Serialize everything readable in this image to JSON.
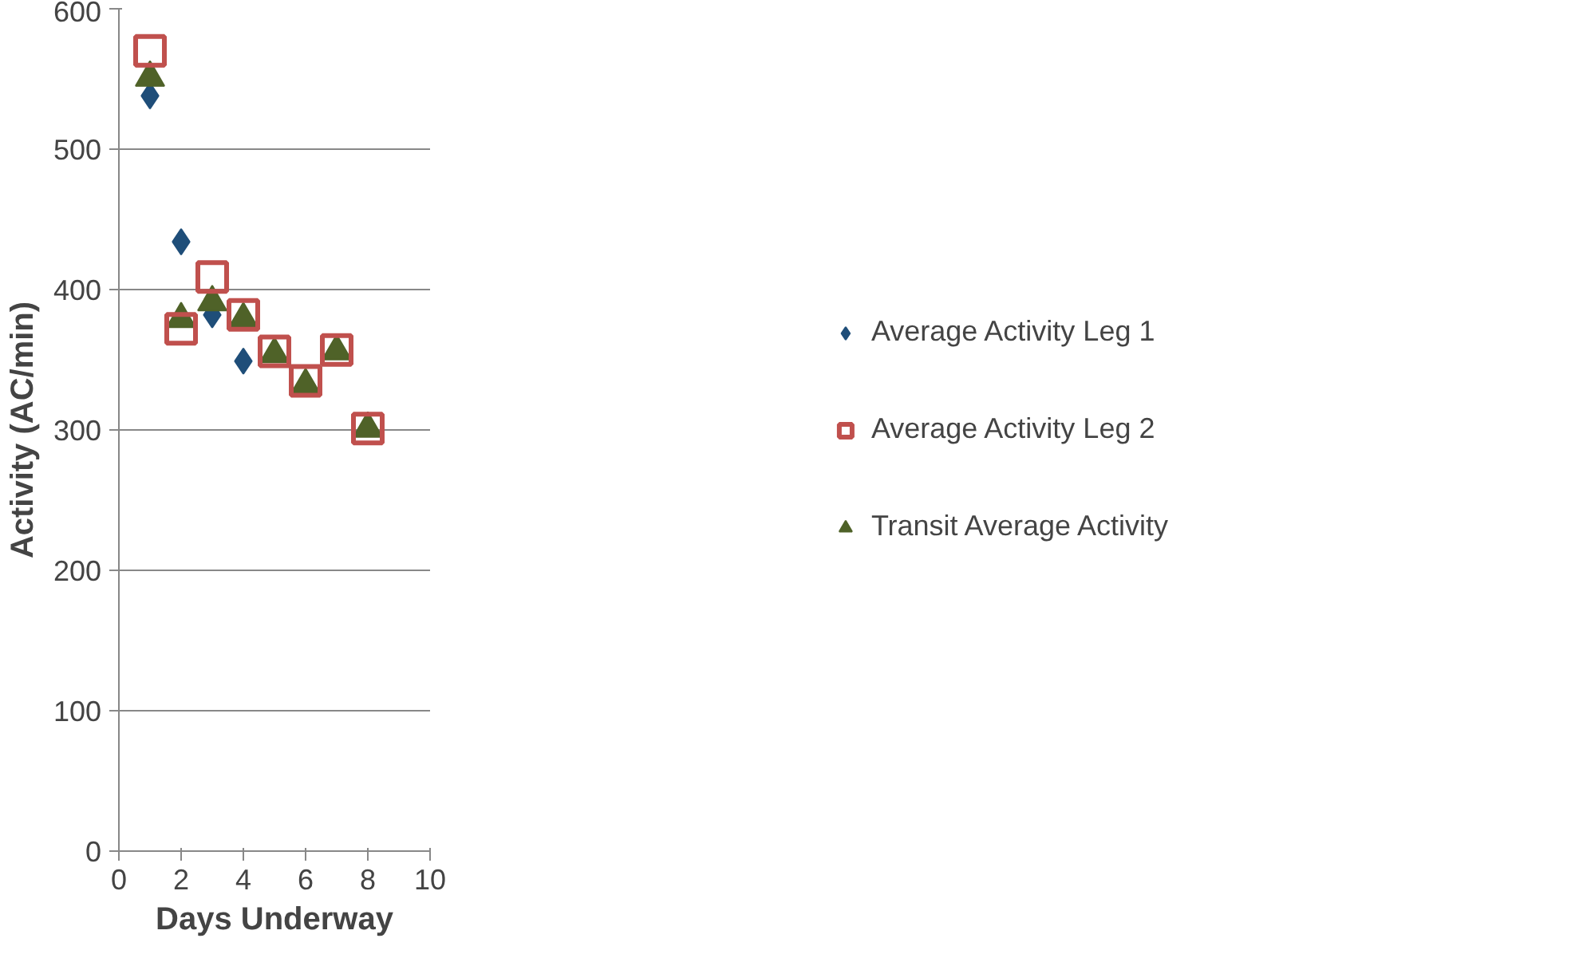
{
  "chart_data": {
    "type": "scatter",
    "xlabel": "Days Underway",
    "ylabel": "Activity (AC/min)",
    "x": [
      1,
      2,
      3,
      4,
      5,
      6,
      7,
      8
    ],
    "series": [
      {
        "name": "Average Activity Leg 1",
        "color": "#1f4e79",
        "marker": "diamond",
        "values": [
          538,
          434,
          382,
          349,
          null,
          null,
          null,
          null
        ]
      },
      {
        "name": "Average Activity Leg 2",
        "color": "#c0504d",
        "marker": "square",
        "values": [
          570,
          372,
          409,
          382,
          356,
          335,
          357,
          301
        ]
      },
      {
        "name": "Transit Average Activity",
        "color": "#4f6228",
        "marker": "triangle",
        "values": [
          551,
          379,
          391,
          379,
          354,
          332,
          356,
          301
        ]
      }
    ],
    "xlim": [
      0,
      10
    ],
    "xticks": [
      0,
      2,
      4,
      6,
      8,
      10
    ],
    "ylim": [
      0,
      600
    ],
    "yticks": [
      0,
      100,
      200,
      300,
      400,
      500,
      600
    ],
    "grid": "y",
    "legend": "right"
  }
}
